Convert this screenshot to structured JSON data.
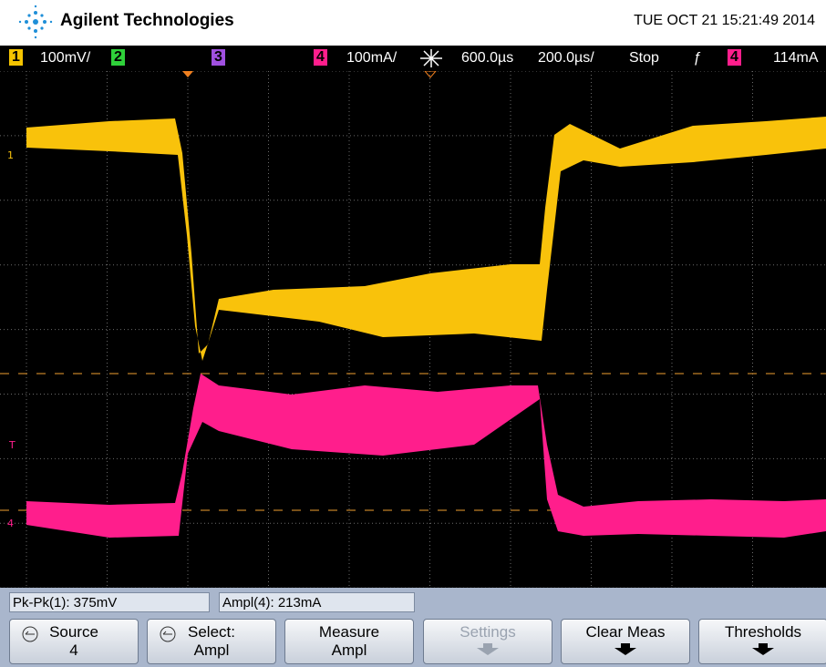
{
  "header": {
    "brand": "Agilent Technologies",
    "datetime": "TUE OCT 21 15:21:49 2014"
  },
  "status": {
    "ch1": "1",
    "ch1_scale": "100mV/",
    "ch2": "2",
    "ch3": "3",
    "ch4": "4",
    "ch4_scale": "100mA/",
    "time_delay": "600.0µs",
    "time_scale": "200.0µs/",
    "run_state": "Stop",
    "trigger_source": "4",
    "trigger_level": "114mA"
  },
  "markers": {
    "ch1": "1",
    "trigger": "T",
    "ch4": "4"
  },
  "measurements": [
    "Pk-Pk(1): 375mV",
    "Ampl(4): 213mA"
  ],
  "softkeys": [
    {
      "label": "Source",
      "value": "4"
    },
    {
      "label": "Select:",
      "value": "Ampl"
    },
    {
      "label": "Measure",
      "value": "Ampl"
    },
    {
      "label": "Settings"
    },
    {
      "label": "Clear Meas"
    },
    {
      "label": "Thresholds"
    }
  ]
}
